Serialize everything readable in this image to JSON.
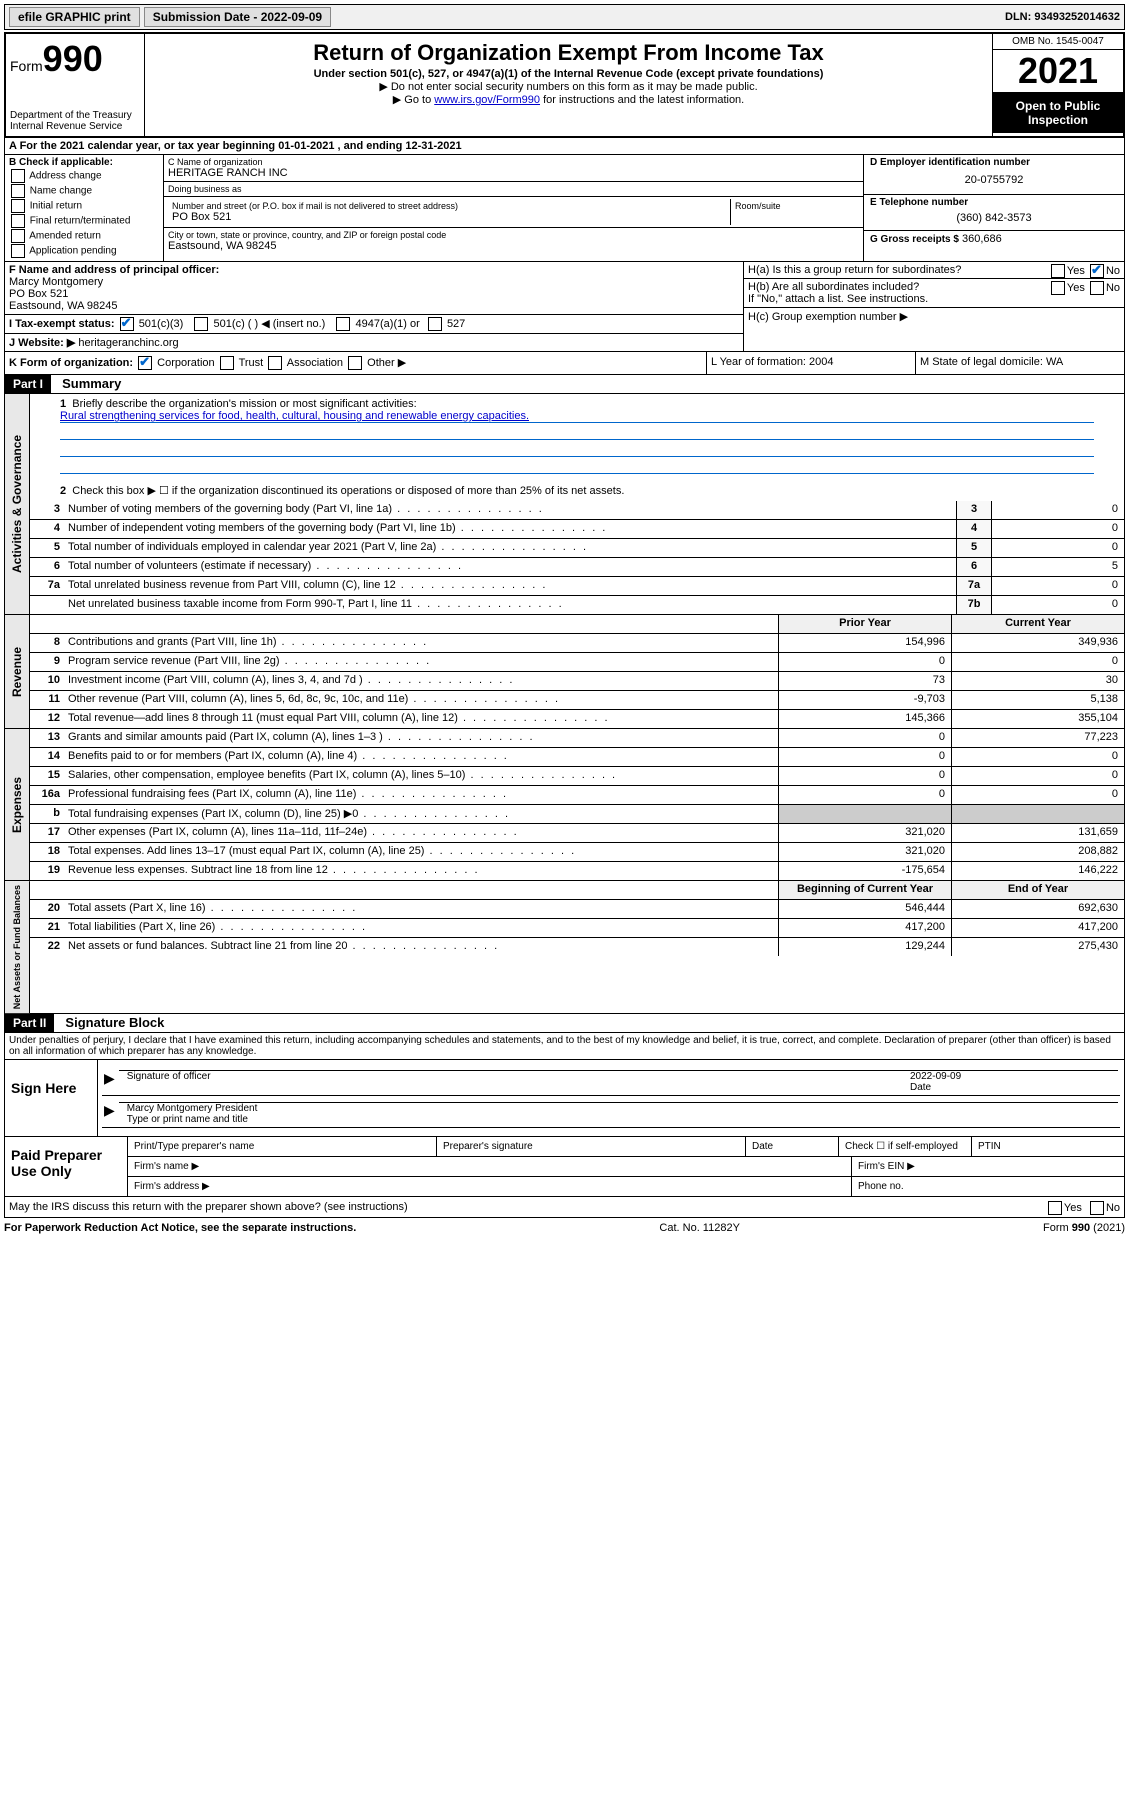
{
  "top_bar": {
    "efile": "efile GRAPHIC print",
    "submission": "Submission Date - 2022-09-09",
    "dln": "DLN: 93493252014632"
  },
  "header": {
    "form_label": "Form",
    "form_number": "990",
    "title": "Return of Organization Exempt From Income Tax",
    "subtitle": "Under section 501(c), 527, or 4947(a)(1) of the Internal Revenue Code (except private foundations)",
    "note1": "▶ Do not enter social security numbers on this form as it may be made public.",
    "note2_pre": "▶ Go to ",
    "note2_link": "www.irs.gov/Form990",
    "note2_post": " for instructions and the latest information.",
    "dept": "Department of the Treasury\nInternal Revenue Service",
    "omb": "OMB No. 1545-0047",
    "year": "2021",
    "inspection": "Open to Public Inspection"
  },
  "row_a": "A For the 2021 calendar year, or tax year beginning 01-01-2021   , and ending 12-31-2021",
  "section_b": {
    "label": "B Check if applicable:",
    "opts": [
      "Address change",
      "Name change",
      "Initial return",
      "Final return/terminated",
      "Amended return",
      "Application pending"
    ]
  },
  "section_c": {
    "name_label": "C Name of organization",
    "name": "HERITAGE RANCH INC",
    "dba_label": "Doing business as",
    "dba": "",
    "street_label": "Number and street (or P.O. box if mail is not delivered to street address)",
    "street": "PO Box 521",
    "suite_label": "Room/suite",
    "city_label": "City or town, state or province, country, and ZIP or foreign postal code",
    "city": "Eastsound, WA  98245"
  },
  "section_d": {
    "ein_label": "D Employer identification number",
    "ein": "20-0755792",
    "phone_label": "E Telephone number",
    "phone": "(360) 842-3573",
    "gross_label": "G Gross receipts $",
    "gross": "360,686"
  },
  "section_f": {
    "label": "F Name and address of principal officer:",
    "name": "Marcy Montgomery",
    "addr1": "PO Box 521",
    "addr2": "Eastsound, WA  98245"
  },
  "section_h": {
    "ha": "H(a)  Is this a group return for subordinates?",
    "hb": "H(b)  Are all subordinates included?",
    "hb_note": "If \"No,\" attach a list. See instructions.",
    "hc": "H(c)  Group exemption number ▶"
  },
  "section_i": {
    "label": "I   Tax-exempt status:",
    "opt1": "501(c)(3)",
    "opt2": "501(c) (  ) ◀ (insert no.)",
    "opt3": "4947(a)(1) or",
    "opt4": "527"
  },
  "section_j": {
    "label": "J   Website: ▶",
    "value": "heritageranchinc.org"
  },
  "row_k": {
    "k_label": "K Form of organization:",
    "k_opts": [
      "Corporation",
      "Trust",
      "Association",
      "Other ▶"
    ],
    "l": "L Year of formation: 2004",
    "m": "M State of legal domicile: WA"
  },
  "part1": {
    "header": "Part I",
    "title": "Summary",
    "q1": "Briefly describe the organization's mission or most significant activities:",
    "mission": "Rural strengthening services for food, health, cultural, housing and renewable energy capacities.",
    "q2": "Check this box ▶ ☐  if the organization discontinued its operations or disposed of more than 25% of its net assets.",
    "lines_gov": [
      {
        "n": "3",
        "d": "Number of voting members of the governing body (Part VI, line 1a)",
        "box": "3",
        "v": "0"
      },
      {
        "n": "4",
        "d": "Number of independent voting members of the governing body (Part VI, line 1b)",
        "box": "4",
        "v": "0"
      },
      {
        "n": "5",
        "d": "Total number of individuals employed in calendar year 2021 (Part V, line 2a)",
        "box": "5",
        "v": "0"
      },
      {
        "n": "6",
        "d": "Total number of volunteers (estimate if necessary)",
        "box": "6",
        "v": "5"
      },
      {
        "n": "7a",
        "d": "Total unrelated business revenue from Part VIII, column (C), line 12",
        "box": "7a",
        "v": "0"
      },
      {
        "n": "",
        "d": "Net unrelated business taxable income from Form 990-T, Part I, line 11",
        "box": "7b",
        "v": "0"
      }
    ],
    "col_headers": {
      "prior": "Prior Year",
      "current": "Current Year"
    },
    "lines_rev": [
      {
        "n": "8",
        "d": "Contributions and grants (Part VIII, line 1h)",
        "p": "154,996",
        "c": "349,936"
      },
      {
        "n": "9",
        "d": "Program service revenue (Part VIII, line 2g)",
        "p": "0",
        "c": "0"
      },
      {
        "n": "10",
        "d": "Investment income (Part VIII, column (A), lines 3, 4, and 7d )",
        "p": "73",
        "c": "30"
      },
      {
        "n": "11",
        "d": "Other revenue (Part VIII, column (A), lines 5, 6d, 8c, 9c, 10c, and 11e)",
        "p": "-9,703",
        "c": "5,138"
      },
      {
        "n": "12",
        "d": "Total revenue—add lines 8 through 11 (must equal Part VIII, column (A), line 12)",
        "p": "145,366",
        "c": "355,104"
      }
    ],
    "lines_exp": [
      {
        "n": "13",
        "d": "Grants and similar amounts paid (Part IX, column (A), lines 1–3 )",
        "p": "0",
        "c": "77,223"
      },
      {
        "n": "14",
        "d": "Benefits paid to or for members (Part IX, column (A), line 4)",
        "p": "0",
        "c": "0"
      },
      {
        "n": "15",
        "d": "Salaries, other compensation, employee benefits (Part IX, column (A), lines 5–10)",
        "p": "0",
        "c": "0"
      },
      {
        "n": "16a",
        "d": "Professional fundraising fees (Part IX, column (A), line 11e)",
        "p": "0",
        "c": "0"
      },
      {
        "n": "b",
        "d": "Total fundraising expenses (Part IX, column (D), line 25) ▶0",
        "p": "",
        "c": "",
        "shaded": true
      },
      {
        "n": "17",
        "d": "Other expenses (Part IX, column (A), lines 11a–11d, 11f–24e)",
        "p": "321,020",
        "c": "131,659"
      },
      {
        "n": "18",
        "d": "Total expenses. Add lines 13–17 (must equal Part IX, column (A), line 25)",
        "p": "321,020",
        "c": "208,882"
      },
      {
        "n": "19",
        "d": "Revenue less expenses. Subtract line 18 from line 12",
        "p": "-175,654",
        "c": "146,222"
      }
    ],
    "col_headers2": {
      "begin": "Beginning of Current Year",
      "end": "End of Year"
    },
    "lines_net": [
      {
        "n": "20",
        "d": "Total assets (Part X, line 16)",
        "p": "546,444",
        "c": "692,630"
      },
      {
        "n": "21",
        "d": "Total liabilities (Part X, line 26)",
        "p": "417,200",
        "c": "417,200"
      },
      {
        "n": "22",
        "d": "Net assets or fund balances. Subtract line 21 from line 20",
        "p": "129,244",
        "c": "275,430"
      }
    ],
    "vert_labels": {
      "gov": "Activities & Governance",
      "rev": "Revenue",
      "exp": "Expenses",
      "net": "Net Assets or Fund Balances"
    }
  },
  "part2": {
    "header": "Part II",
    "title": "Signature Block",
    "penalties": "Under penalties of perjury, I declare that I have examined this return, including accompanying schedules and statements, and to the best of my knowledge and belief, it is true, correct, and complete. Declaration of preparer (other than officer) is based on all information of which preparer has any knowledge.",
    "sign_here": "Sign Here",
    "sig_officer": "Signature of officer",
    "sig_date": "2022-09-09",
    "date_label": "Date",
    "officer_name": "Marcy Montgomery  President",
    "officer_label": "Type or print name and title",
    "paid": "Paid Preparer Use Only",
    "paid_cols": [
      "Print/Type preparer's name",
      "Preparer's signature",
      "Date"
    ],
    "check_if": "Check ☐ if self-employed",
    "ptin": "PTIN",
    "firm_name": "Firm's name    ▶",
    "firm_ein": "Firm's EIN ▶",
    "firm_addr": "Firm's address ▶",
    "phone": "Phone no."
  },
  "bottom": {
    "discuss": "May the IRS discuss this return with the preparer shown above? (see instructions)",
    "paperwork": "For Paperwork Reduction Act Notice, see the separate instructions.",
    "cat": "Cat. No. 11282Y",
    "form": "Form 990 (2021)"
  }
}
